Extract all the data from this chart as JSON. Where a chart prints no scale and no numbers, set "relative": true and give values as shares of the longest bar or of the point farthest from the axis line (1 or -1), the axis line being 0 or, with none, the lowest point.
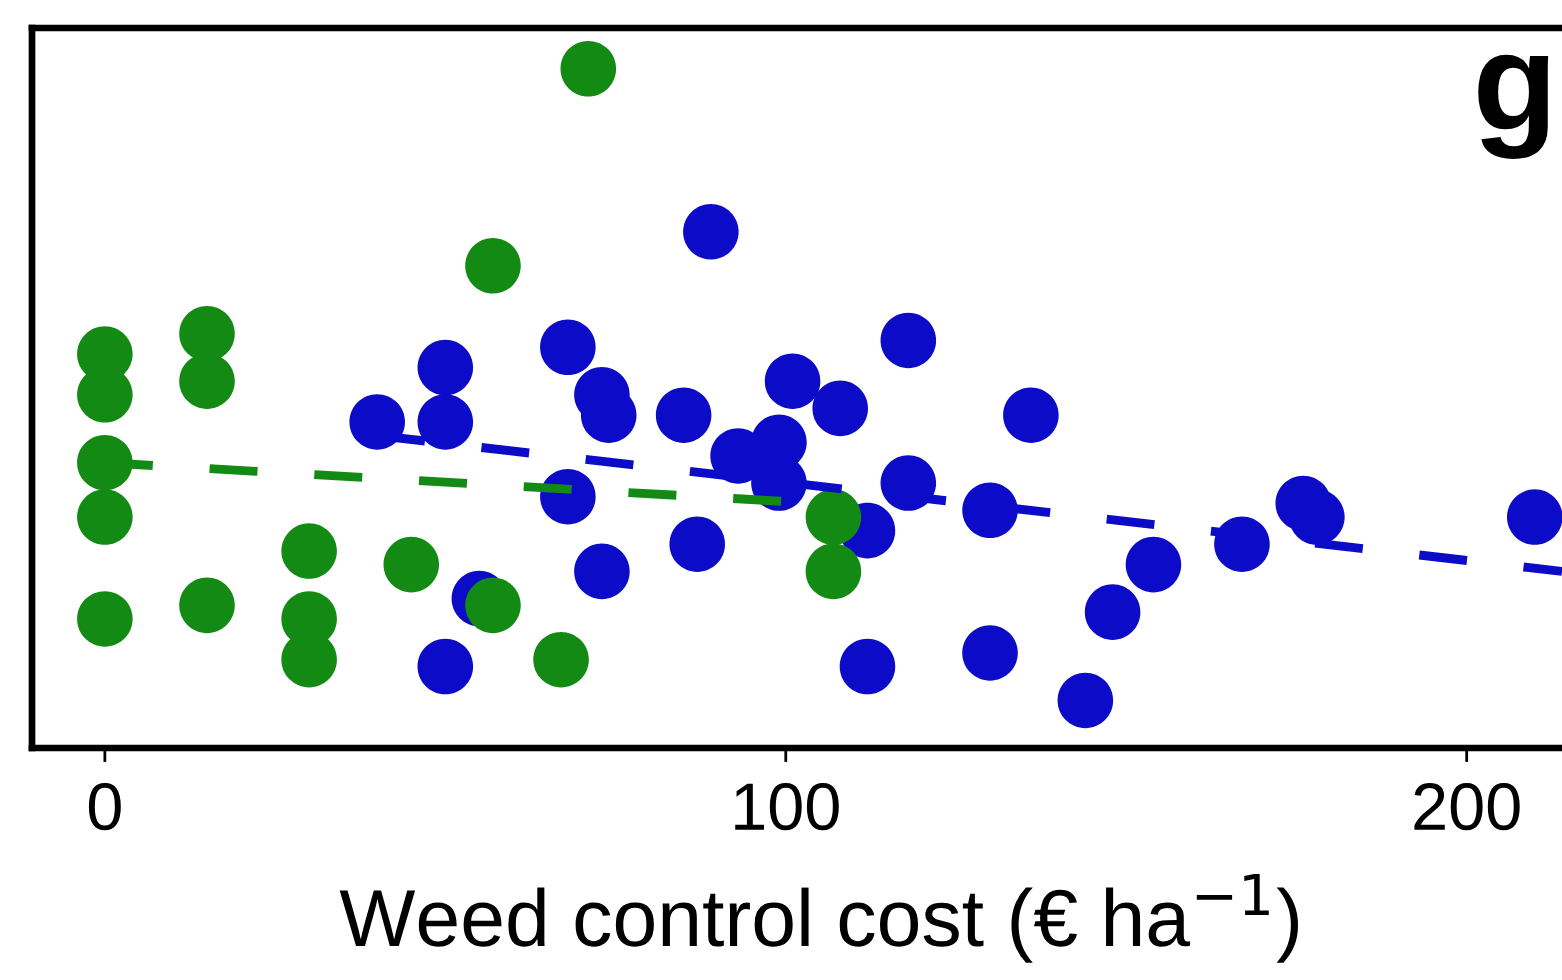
{
  "chart_data": {
    "type": "scatter",
    "xlabel": "Weed control cost (€ ha$^{−1}$)",
    "annotations": [
      "g"
    ],
    "relative": true,
    "marker": "circle",
    "xlim": [
      -10.7,
      214
    ],
    "xticks": [
      0,
      100,
      200
    ],
    "series": [
      {
        "color": "#0b0bc8",
        "x": [
          40,
          50,
          50,
          55,
          50,
          89,
          68,
          73,
          74,
          68,
          73,
          85,
          87,
          101,
          108,
          93,
          99,
          99,
          112,
          112,
          118,
          118,
          130,
          130,
          136,
          154,
          148,
          144,
          167,
          176,
          178,
          210
        ],
        "values": [
          0.48,
          0.56,
          0.48,
          0.22,
          0.12,
          0.76,
          0.59,
          0.52,
          0.49,
          0.37,
          0.26,
          0.49,
          0.3,
          0.54,
          0.5,
          0.43,
          0.45,
          0.39,
          0.32,
          0.12,
          0.6,
          0.39,
          0.35,
          0.14,
          0.49,
          0.27,
          0.2,
          0.07,
          0.3,
          0.36,
          0.34,
          0.34
        ]
      },
      {
        "color": "#138a13",
        "x": [
          0,
          0,
          0,
          0,
          0,
          15,
          15,
          15,
          30,
          30,
          30,
          45,
          57,
          57,
          71,
          67,
          107,
          107
        ],
        "values": [
          0.58,
          0.52,
          0.42,
          0.34,
          0.19,
          0.61,
          0.54,
          0.21,
          0.29,
          0.19,
          0.13,
          0.27,
          0.21,
          0.71,
          1.0,
          0.13,
          0.34,
          0.26
        ]
      },
      {
        "type": "line",
        "color": "#0b0bc8",
        "marker": "none",
        "line_style": "dashed",
        "x": [
          40,
          214
        ],
        "values": [
          0.46,
          0.26
        ]
      },
      {
        "type": "line",
        "color": "#138a13",
        "marker": "none",
        "line_style": "dashed",
        "x": [
          0,
          105
        ],
        "values": [
          0.42,
          0.36
        ]
      }
    ]
  }
}
